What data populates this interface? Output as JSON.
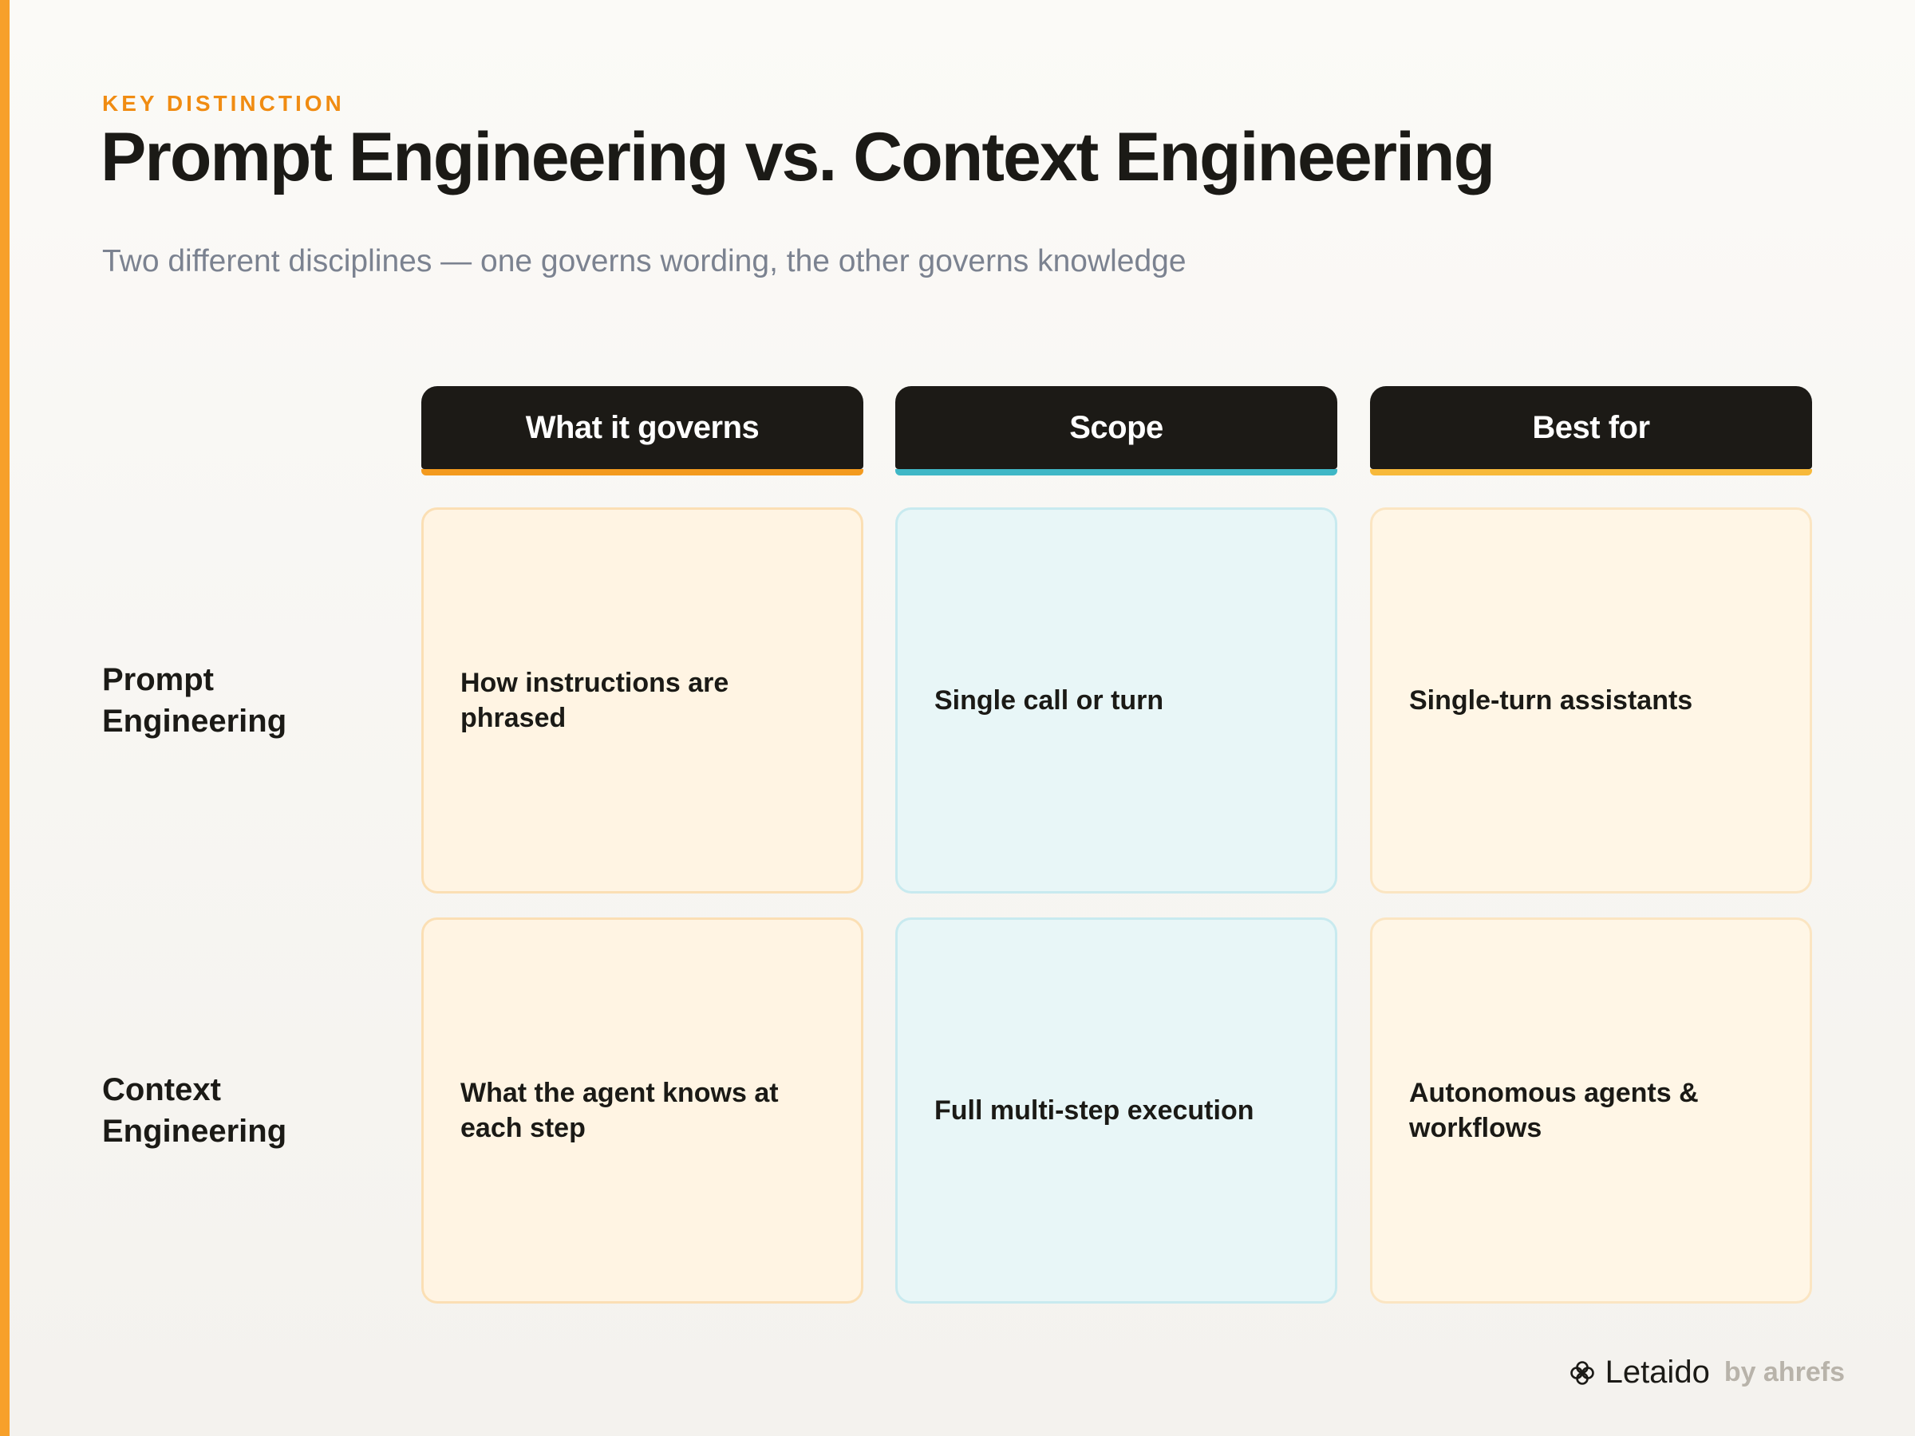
{
  "header": {
    "eyebrow": "KEY DISTINCTION",
    "title": "Prompt Engineering vs. Context Engineering",
    "subtitle": "Two different disciplines — one governs wording, the other governs knowledge"
  },
  "columns": [
    {
      "label": "What it governs",
      "accent": "#f39a1e"
    },
    {
      "label": "Scope",
      "accent": "#3fb7c6"
    },
    {
      "label": "Best for",
      "accent": "#f7b93a"
    }
  ],
  "rows": [
    {
      "label": "Prompt Engineering",
      "cells": [
        "How instructions are phrased",
        "Single call or turn",
        "Single-turn assistants"
      ]
    },
    {
      "label": "Context Engineering",
      "cells": [
        "What the agent knows at each step",
        "Full multi-step execution",
        "Autonomous agents & workflows"
      ]
    }
  ],
  "footer": {
    "brand": "Letaido",
    "byline": "by ahrefs",
    "icon": "flower-logo-icon"
  },
  "colors": {
    "accent": "#f7a02a",
    "eyebrow": "#f08c12",
    "header_bg": "#1c1a16"
  }
}
